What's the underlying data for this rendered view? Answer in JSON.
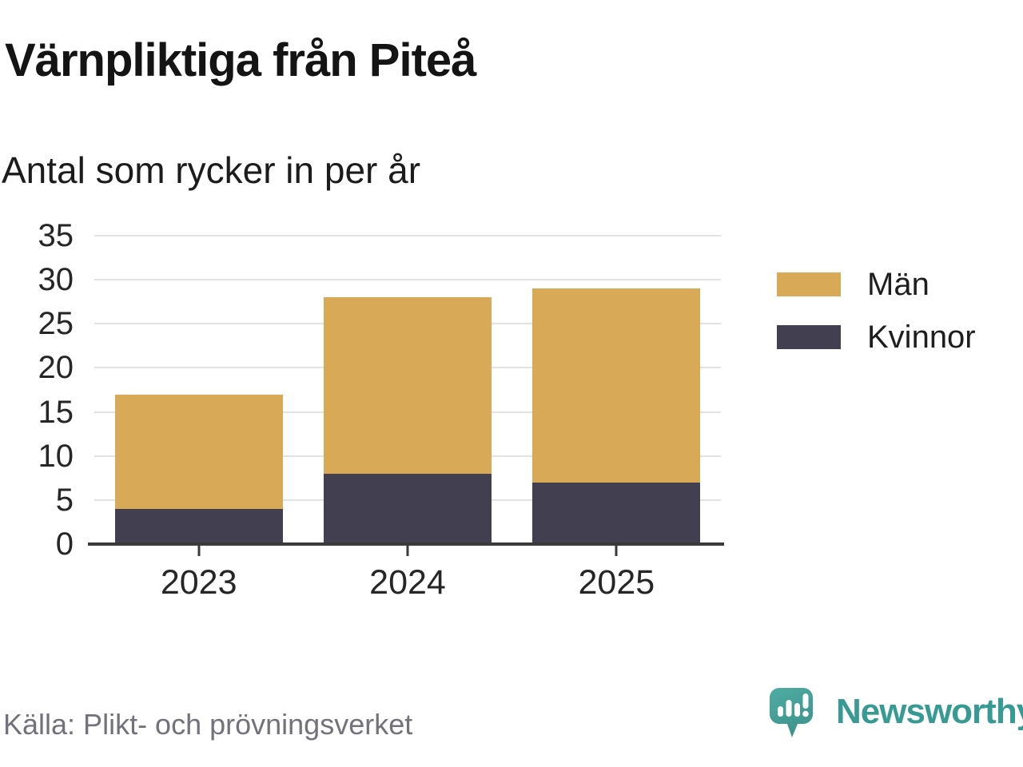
{
  "header": {
    "title": "Värnpliktiga från Piteå",
    "subtitle": "Antal som rycker in per år"
  },
  "chart_data": {
    "type": "bar",
    "stacked": true,
    "title": "Värnpliktiga från Piteå",
    "subtitle": "Antal som rycker in per år",
    "categories": [
      "2023",
      "2024",
      "2025"
    ],
    "series": [
      {
        "name": "Kvinnor",
        "color": "#423F50",
        "values": [
          4,
          8,
          7
        ]
      },
      {
        "name": "Män",
        "color": "#D8A957",
        "values": [
          13,
          20,
          22
        ]
      }
    ],
    "stack_totals": [
      17,
      28,
      29
    ],
    "xlabel": "",
    "ylabel": "",
    "ylim": [
      0,
      35
    ],
    "yticks": [
      0,
      5,
      10,
      15,
      20,
      25,
      30,
      35
    ],
    "grid": true,
    "legend_position": "right",
    "legend_order": [
      "Män",
      "Kvinnor"
    ]
  },
  "legend": {
    "items": [
      {
        "label": "Män",
        "color": "#D8A957"
      },
      {
        "label": "Kvinnor",
        "color": "#423F50"
      }
    ]
  },
  "footer": {
    "source": "Källa: Plikt- och prövningsverket",
    "brand": "Newsworthy"
  },
  "colors": {
    "men": "#D8A957",
    "women": "#423F50",
    "gridline": "#E2E2E2",
    "axis": "#3A3A3A",
    "tick_label": "#262626",
    "source_text": "#73727B",
    "brand_teal": "#379B94",
    "logo_fill_top": "#4FADA2",
    "logo_fill_bottom": "#3D948D"
  },
  "icons": {
    "logo": "newsworthy-logo"
  }
}
